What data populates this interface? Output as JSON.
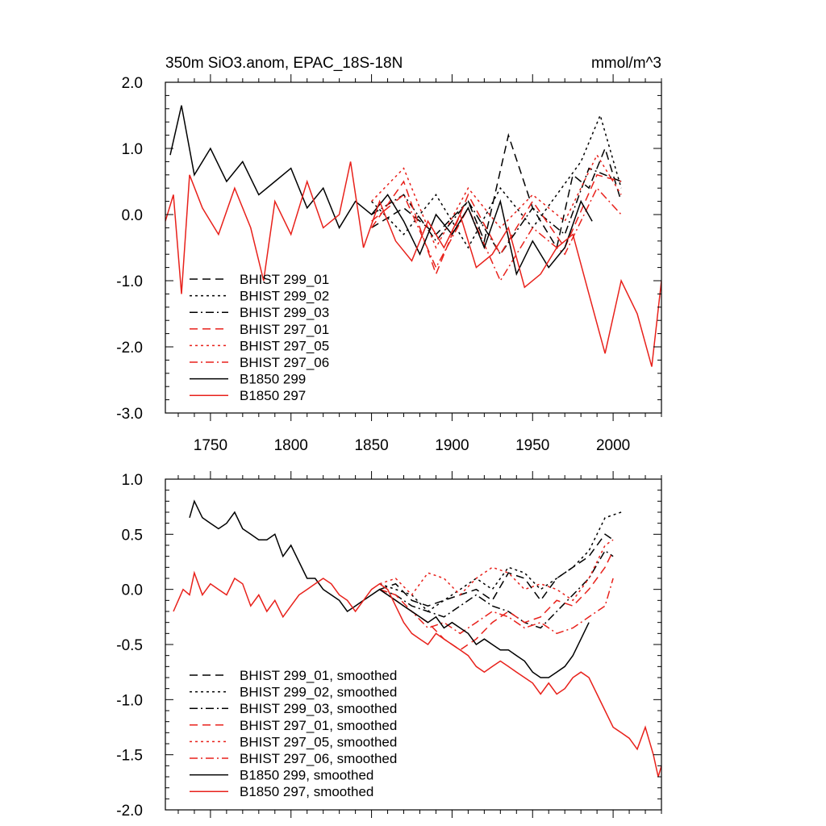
{
  "chart_data": [
    {
      "type": "line",
      "title": "350m SiO3.anom, EPAC_18S-18N",
      "units": "mmol/m^3",
      "xlim": [
        1722,
        2030
      ],
      "ylim": [
        -3.0,
        2.0
      ],
      "x_ticks": [
        1750,
        1800,
        1850,
        1900,
        1950,
        2000
      ],
      "x_tick_labels": [
        "1750",
        "1800",
        "1850",
        "1900",
        "1950",
        "2000"
      ],
      "y_ticks": [
        2.0,
        1.0,
        0.0,
        -1.0,
        -2.0,
        -3.0
      ],
      "y_tick_labels": [
        "2.0",
        "1.0",
        "0.0",
        "-1.0",
        "-2.0",
        "-3.0"
      ],
      "legend_position": "bottom-left",
      "series": [
        {
          "name": "BHIST 299_01",
          "color": "#000000",
          "dash": "dash",
          "x": [
            1850,
            1870,
            1890,
            1910,
            1920,
            1935,
            1950,
            1965,
            1975,
            1985,
            1995,
            2005
          ],
          "values": [
            -0.2,
            0.1,
            -0.3,
            0.2,
            -0.4,
            1.2,
            0.1,
            -0.5,
            0.6,
            0.4,
            1.0,
            0.2
          ]
        },
        {
          "name": "BHIST 299_02",
          "color": "#000000",
          "dash": "dot",
          "x": [
            1850,
            1870,
            1890,
            1910,
            1930,
            1950,
            1965,
            1980,
            1992,
            2005
          ],
          "values": [
            0.2,
            -0.3,
            0.3,
            -0.5,
            0.4,
            -0.2,
            0.3,
            0.8,
            1.5,
            0.4
          ]
        },
        {
          "name": "BHIST 299_03",
          "color": "#000000",
          "dash": "dashdot",
          "x": [
            1850,
            1870,
            1890,
            1910,
            1930,
            1950,
            1970,
            1985,
            2005
          ],
          "values": [
            0.0,
            0.3,
            -0.4,
            0.2,
            -0.6,
            0.1,
            -0.3,
            0.7,
            0.5
          ]
        },
        {
          "name": "BHIST 297_01",
          "color": "#e8211b",
          "dash": "dash",
          "x": [
            1850,
            1870,
            1890,
            1910,
            1930,
            1950,
            1970,
            1990,
            2005
          ],
          "values": [
            -0.2,
            0.5,
            -0.9,
            0.3,
            -0.6,
            0.2,
            -0.5,
            0.6,
            0.5
          ]
        },
        {
          "name": "BHIST 297_05",
          "color": "#e8211b",
          "dash": "dot",
          "x": [
            1850,
            1870,
            1890,
            1910,
            1930,
            1950,
            1970,
            1990,
            2005
          ],
          "values": [
            0.2,
            0.7,
            -0.5,
            0.4,
            -0.2,
            0.3,
            -0.1,
            0.9,
            0.3
          ]
        },
        {
          "name": "BHIST 297_06",
          "color": "#e8211b",
          "dash": "dashdot",
          "x": [
            1850,
            1870,
            1890,
            1910,
            1930,
            1950,
            1970,
            1990,
            2005
          ],
          "values": [
            -0.1,
            0.3,
            -0.8,
            0.1,
            -1.0,
            -0.2,
            -0.6,
            0.4,
            0.0
          ]
        },
        {
          "name": "B1850 299",
          "color": "#000000",
          "dash": "solid",
          "x": [
            1725,
            1732,
            1740,
            1750,
            1760,
            1770,
            1780,
            1790,
            1800,
            1810,
            1820,
            1830,
            1840,
            1850,
            1860,
            1870,
            1880,
            1890,
            1900,
            1910,
            1920,
            1930,
            1940,
            1950,
            1960,
            1970,
            1980,
            1987
          ],
          "values": [
            0.9,
            1.65,
            0.6,
            1.0,
            0.5,
            0.8,
            0.3,
            0.5,
            0.7,
            0.1,
            0.4,
            -0.2,
            0.2,
            0.0,
            0.3,
            -0.1,
            -0.6,
            0.0,
            -0.3,
            0.1,
            -0.5,
            0.2,
            -0.9,
            -0.4,
            -0.8,
            -0.5,
            0.2,
            -0.1
          ]
        },
        {
          "name": "B1850 297",
          "color": "#e8211b",
          "dash": "solid",
          "x": [
            1722,
            1727,
            1732,
            1737,
            1745,
            1755,
            1765,
            1775,
            1783,
            1790,
            1800,
            1810,
            1820,
            1830,
            1837,
            1845,
            1855,
            1865,
            1875,
            1885,
            1895,
            1905,
            1915,
            1925,
            1935,
            1945,
            1955,
            1965,
            1975,
            1985,
            1995,
            2005,
            2015,
            2024,
            2030
          ],
          "values": [
            -0.1,
            0.3,
            -1.2,
            0.6,
            0.1,
            -0.3,
            0.4,
            -0.2,
            -1.0,
            0.2,
            -0.3,
            0.5,
            -0.2,
            0.0,
            0.8,
            -0.5,
            0.2,
            -0.4,
            -0.7,
            -0.1,
            -0.5,
            0.0,
            -0.8,
            -0.6,
            -0.2,
            -1.1,
            -0.9,
            -0.5,
            -0.3,
            -1.2,
            -2.1,
            -1.0,
            -1.5,
            -2.3,
            -1.0
          ]
        }
      ]
    },
    {
      "type": "line",
      "xlim": [
        1722,
        2030
      ],
      "ylim": [
        -2.0,
        1.0
      ],
      "x_ticks": [
        1750,
        1800,
        1850,
        1900,
        1950,
        2000
      ],
      "y_ticks": [
        1.0,
        0.5,
        0.0,
        -0.5,
        -1.0,
        -1.5,
        -2.0
      ],
      "y_tick_labels": [
        "1.0",
        "0.5",
        "0.0",
        "-0.5",
        "-1.0",
        "-1.5",
        "-2.0"
      ],
      "legend_position": "bottom-left",
      "series": [
        {
          "name": "BHIST 299_01, smoothed",
          "color": "#000000",
          "dash": "dash",
          "x": [
            1855,
            1865,
            1875,
            1885,
            1895,
            1905,
            1915,
            1925,
            1935,
            1945,
            1955,
            1965,
            1975,
            1985,
            1995,
            2000
          ],
          "values": [
            0.0,
            0.05,
            -0.1,
            -0.15,
            -0.1,
            -0.05,
            0.0,
            -0.1,
            0.15,
            0.1,
            -0.1,
            0.1,
            0.2,
            0.3,
            0.5,
            0.45
          ]
        },
        {
          "name": "BHIST 299_02, smoothed",
          "color": "#000000",
          "dash": "dot",
          "x": [
            1855,
            1865,
            1875,
            1885,
            1895,
            1905,
            1915,
            1925,
            1935,
            1945,
            1955,
            1965,
            1975,
            1985,
            1995,
            2005
          ],
          "values": [
            0.05,
            0.0,
            -0.05,
            -0.2,
            -0.1,
            0.0,
            0.1,
            0.0,
            0.2,
            0.15,
            0.0,
            0.1,
            0.2,
            0.35,
            0.65,
            0.7
          ]
        },
        {
          "name": "BHIST 299_03, smoothed",
          "color": "#000000",
          "dash": "dashdot",
          "x": [
            1855,
            1865,
            1875,
            1885,
            1895,
            1905,
            1915,
            1925,
            1935,
            1945,
            1955,
            1965,
            1975,
            1985,
            1995,
            2000
          ],
          "values": [
            0.0,
            -0.05,
            -0.15,
            -0.2,
            -0.25,
            -0.15,
            -0.05,
            -0.15,
            -0.2,
            -0.3,
            -0.35,
            -0.2,
            -0.05,
            0.1,
            0.35,
            0.3
          ]
        },
        {
          "name": "BHIST 297_01, smoothed",
          "color": "#e8211b",
          "dash": "dash",
          "x": [
            1855,
            1865,
            1875,
            1885,
            1895,
            1905,
            1915,
            1925,
            1935,
            1945,
            1955,
            1965,
            1975,
            1985,
            1995,
            2000
          ],
          "values": [
            0.0,
            -0.05,
            -0.2,
            -0.3,
            -0.45,
            -0.55,
            -0.45,
            -0.3,
            -0.2,
            -0.3,
            -0.25,
            -0.1,
            -0.15,
            0.0,
            0.2,
            0.35
          ]
        },
        {
          "name": "BHIST 297_05, smoothed",
          "color": "#e8211b",
          "dash": "dot",
          "x": [
            1855,
            1865,
            1875,
            1885,
            1895,
            1905,
            1915,
            1925,
            1935,
            1945,
            1955,
            1965,
            1975,
            1985,
            1995,
            2000
          ],
          "values": [
            0.05,
            0.1,
            -0.05,
            0.15,
            0.1,
            -0.05,
            0.1,
            0.2,
            0.15,
            0.0,
            0.05,
            0.0,
            -0.1,
            0.1,
            0.4,
            0.45
          ]
        },
        {
          "name": "BHIST 297_06, smoothed",
          "color": "#e8211b",
          "dash": "dashdot",
          "x": [
            1855,
            1865,
            1875,
            1885,
            1895,
            1905,
            1915,
            1925,
            1935,
            1945,
            1955,
            1965,
            1975,
            1985,
            1995,
            2000
          ],
          "values": [
            0.0,
            -0.1,
            -0.2,
            -0.35,
            -0.3,
            -0.4,
            -0.3,
            -0.2,
            -0.25,
            -0.35,
            -0.3,
            -0.4,
            -0.35,
            -0.25,
            -0.15,
            0.1
          ]
        },
        {
          "name": "B1850 299, smoothed",
          "color": "#000000",
          "dash": "solid",
          "x": [
            1737,
            1740,
            1745,
            1750,
            1755,
            1760,
            1765,
            1770,
            1775,
            1780,
            1785,
            1790,
            1795,
            1800,
            1805,
            1810,
            1815,
            1820,
            1825,
            1830,
            1835,
            1840,
            1845,
            1850,
            1855,
            1860,
            1865,
            1870,
            1875,
            1880,
            1885,
            1890,
            1895,
            1900,
            1905,
            1910,
            1915,
            1920,
            1925,
            1930,
            1935,
            1940,
            1945,
            1950,
            1955,
            1960,
            1965,
            1970,
            1975,
            1980,
            1985
          ],
          "values": [
            0.65,
            0.8,
            0.65,
            0.6,
            0.55,
            0.6,
            0.7,
            0.55,
            0.5,
            0.45,
            0.45,
            0.5,
            0.3,
            0.4,
            0.25,
            0.1,
            0.1,
            0.0,
            -0.05,
            -0.1,
            -0.2,
            -0.15,
            -0.1,
            -0.05,
            0.0,
            -0.05,
            -0.1,
            -0.15,
            -0.2,
            -0.25,
            -0.3,
            -0.25,
            -0.35,
            -0.3,
            -0.35,
            -0.4,
            -0.5,
            -0.45,
            -0.5,
            -0.55,
            -0.55,
            -0.6,
            -0.65,
            -0.75,
            -0.8,
            -0.8,
            -0.75,
            -0.7,
            -0.6,
            -0.45,
            -0.3
          ]
        },
        {
          "name": "B1850 297, smoothed",
          "color": "#e8211b",
          "dash": "solid",
          "x": [
            1727,
            1730,
            1733,
            1737,
            1740,
            1745,
            1750,
            1755,
            1760,
            1765,
            1770,
            1775,
            1780,
            1785,
            1790,
            1795,
            1800,
            1805,
            1810,
            1815,
            1820,
            1825,
            1830,
            1835,
            1840,
            1845,
            1850,
            1855,
            1860,
            1865,
            1870,
            1875,
            1880,
            1885,
            1890,
            1895,
            1900,
            1905,
            1910,
            1915,
            1920,
            1925,
            1930,
            1935,
            1940,
            1945,
            1950,
            1955,
            1960,
            1965,
            1970,
            1975,
            1980,
            1985,
            1990,
            1995,
            2000,
            2005,
            2010,
            2015,
            2020,
            2025,
            2028,
            2030
          ],
          "values": [
            -0.2,
            -0.1,
            0.0,
            -0.05,
            0.15,
            -0.05,
            0.05,
            0.0,
            -0.05,
            0.1,
            0.05,
            -0.15,
            -0.05,
            -0.2,
            -0.1,
            -0.25,
            -0.15,
            -0.05,
            0.0,
            0.05,
            0.1,
            0.05,
            -0.05,
            -0.1,
            -0.2,
            -0.1,
            0.0,
            0.05,
            0.0,
            -0.15,
            -0.3,
            -0.4,
            -0.45,
            -0.5,
            -0.4,
            -0.45,
            -0.5,
            -0.55,
            -0.6,
            -0.7,
            -0.75,
            -0.7,
            -0.65,
            -0.7,
            -0.75,
            -0.8,
            -0.85,
            -0.95,
            -0.85,
            -0.95,
            -0.9,
            -0.8,
            -0.75,
            -0.8,
            -0.95,
            -1.1,
            -1.25,
            -1.3,
            -1.35,
            -1.45,
            -1.25,
            -1.5,
            -1.7,
            -1.6
          ]
        }
      ]
    }
  ]
}
